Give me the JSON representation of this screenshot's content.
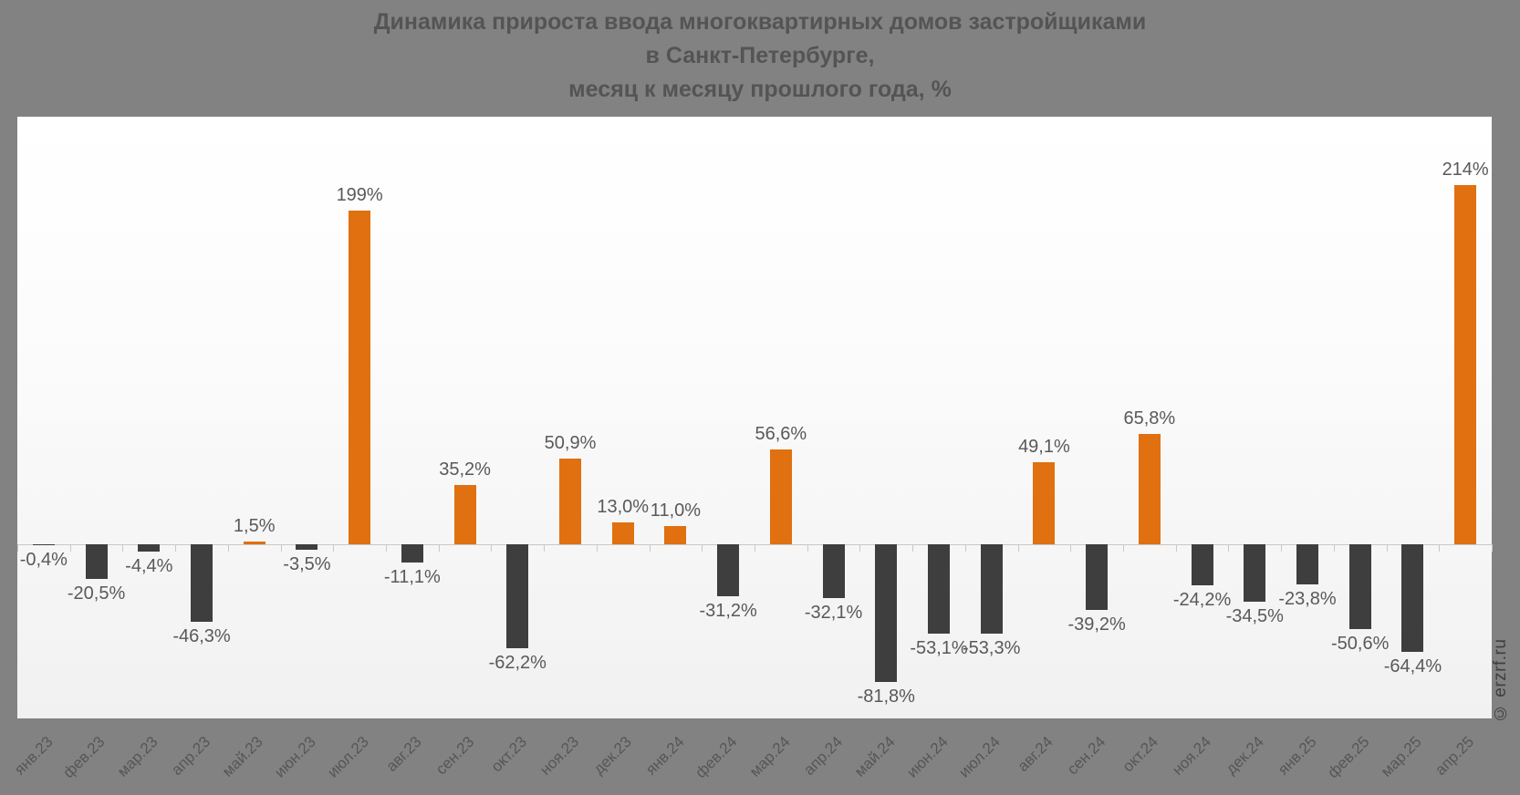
{
  "title": "Динамика прироста ввода многоквартирных домов застройщиками\nв Санкт-Петербурге,\nмесяц к месяцу прошлого года, %",
  "watermark": "© erzrf.ru",
  "colors": {
    "background": "#828282",
    "positive_bar": "#e07010",
    "negative_bar": "#3e3e3e",
    "value_label_text": "#595959",
    "axis_line": "#c8c8c8",
    "title_text": "#545454",
    "x_label_text": "#565656",
    "watermark_text": "#3f3f3f"
  },
  "chart_data": {
    "type": "bar",
    "title": "Динамика прироста ввода многоквартирных домов застройщиками в Санкт-Петербурге, месяц к месяцу прошлого года, %",
    "xlabel": "",
    "ylabel": "",
    "grid": false,
    "ylim": [
      -99,
      255
    ],
    "categories": [
      "янв.23",
      "фев.23",
      "мар.23",
      "апр.23",
      "май.23",
      "июн.23",
      "июл.23",
      "авг.23",
      "сен.23",
      "окт.23",
      "ноя.23",
      "дек.23",
      "янв.24",
      "фев.24",
      "мар.24",
      "апр.24",
      "май.24",
      "июн.24",
      "июл.24",
      "авг.24",
      "сен.24",
      "окт.24",
      "ноя.24",
      "дек.24",
      "янв.25",
      "фев.25",
      "мар.25",
      "апр.25"
    ],
    "values": [
      -0.4,
      -20.5,
      -4.4,
      -46.3,
      1.5,
      -3.5,
      199,
      -11.1,
      35.2,
      -62.2,
      50.9,
      13.0,
      11.0,
      -31.2,
      56.6,
      -32.1,
      -81.8,
      -53.1,
      -53.3,
      49.1,
      -39.2,
      65.8,
      -24.2,
      -34.5,
      -23.8,
      -50.6,
      -64.4,
      214
    ],
    "labels": [
      "-0,4%",
      "-20,5%",
      "-4,4%",
      "-46,3%",
      "1,5%",
      "-3,5%",
      "199%",
      "-11,1%",
      "35,2%",
      "-62,2%",
      "50,9%",
      "13,0%",
      "11,0%",
      "-31,2%",
      "56,6%",
      "-32,1%",
      "-81,8%",
      "-53,1%",
      "-53,3%",
      "49,1%",
      "-39,2%",
      "65,8%",
      "-24,2%",
      "-34,5%",
      "-23,8%",
      "-50,6%",
      "-64,4%",
      "214%"
    ]
  }
}
